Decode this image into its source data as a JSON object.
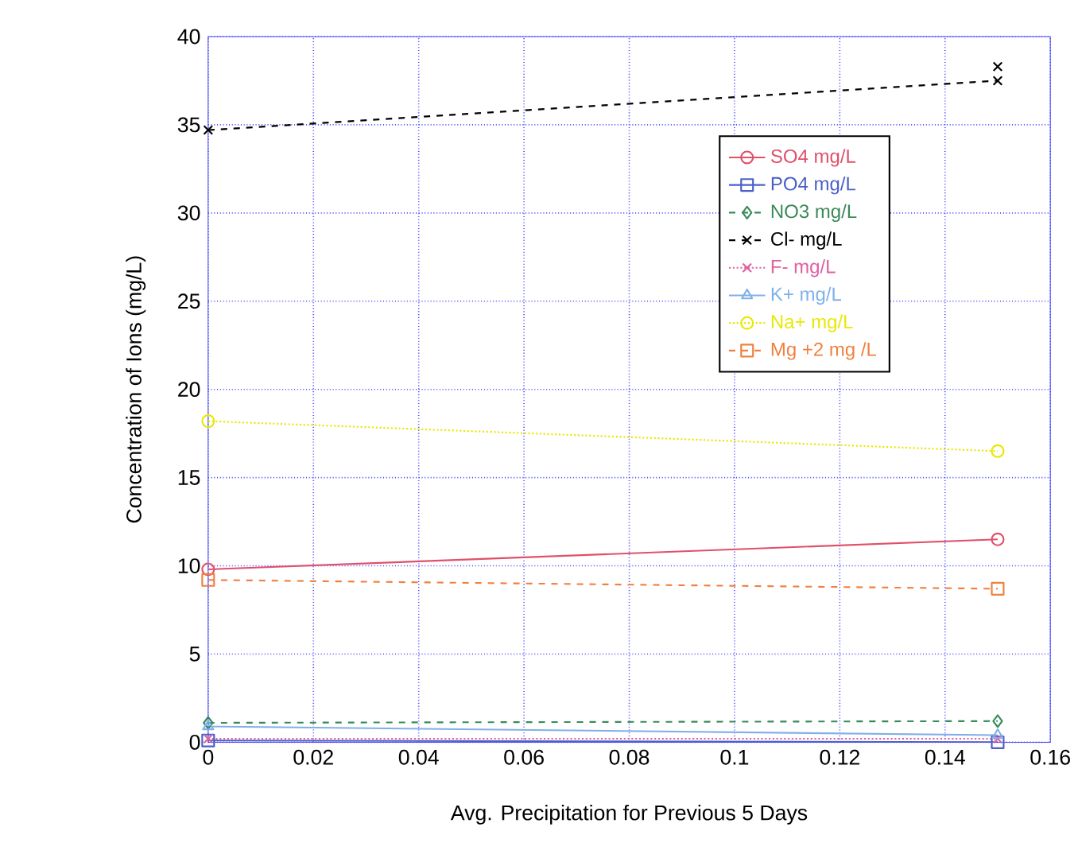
{
  "chart_data": {
    "type": "line",
    "xlabel": "Avg. Precipitation for Previous 5 Days",
    "ylabel": "Concentration of Ions (mg/L)",
    "xlim": [
      0,
      0.16
    ],
    "xticks": [
      0,
      0.02,
      0.04,
      0.06,
      0.08,
      0.1,
      0.12,
      0.14,
      0.16
    ],
    "ylim": [
      0,
      40
    ],
    "yticks": [
      0,
      5,
      10,
      15,
      20,
      25,
      30,
      35,
      40
    ],
    "grid": true,
    "legend": "top right",
    "x": [
      0,
      0.15
    ],
    "series": [
      {
        "name": "SO4 mg/L",
        "color": "#e0506a",
        "values": [
          9.8,
          11.5
        ],
        "marker": "circle",
        "line_style": "solid"
      },
      {
        "name": "PO4 mg/L",
        "color": "#4a5fc8",
        "values": [
          0.1,
          0.0
        ],
        "marker": "square",
        "line_style": "solid"
      },
      {
        "name": "NO3 mg/L",
        "color": "#3a8a5a",
        "values": [
          1.1,
          1.2
        ],
        "marker": "diamond",
        "line_style": "dashed"
      },
      {
        "name": "Cl- mg/L",
        "color": "#000000",
        "values": [
          34.7,
          37.5
        ],
        "marker": "cross",
        "line_style": "dashed"
      },
      {
        "type": "scatter",
        "color": "#000000",
        "x": [
          0.15
        ],
        "values": [
          38.3
        ],
        "marker": "cross"
      },
      {
        "name": "F- mg/L",
        "color": "#e060a0",
        "values": [
          0.2,
          0.2
        ],
        "marker": "cross",
        "line_style": "dotted"
      },
      {
        "name": "K+ mg/L",
        "color": "#80b0e8",
        "values": [
          0.9,
          0.4
        ],
        "marker": "triangle",
        "line_style": "solid"
      },
      {
        "name": "Na+ mg/L",
        "color": "#e8e800",
        "values": [
          18.2,
          16.5
        ],
        "marker": "circle",
        "line_style": "dotted"
      },
      {
        "name": "Mg +2 mg /L",
        "color": "#f08040",
        "values": [
          9.2,
          8.7
        ],
        "marker": "square",
        "line_style": "dashed"
      }
    ]
  }
}
